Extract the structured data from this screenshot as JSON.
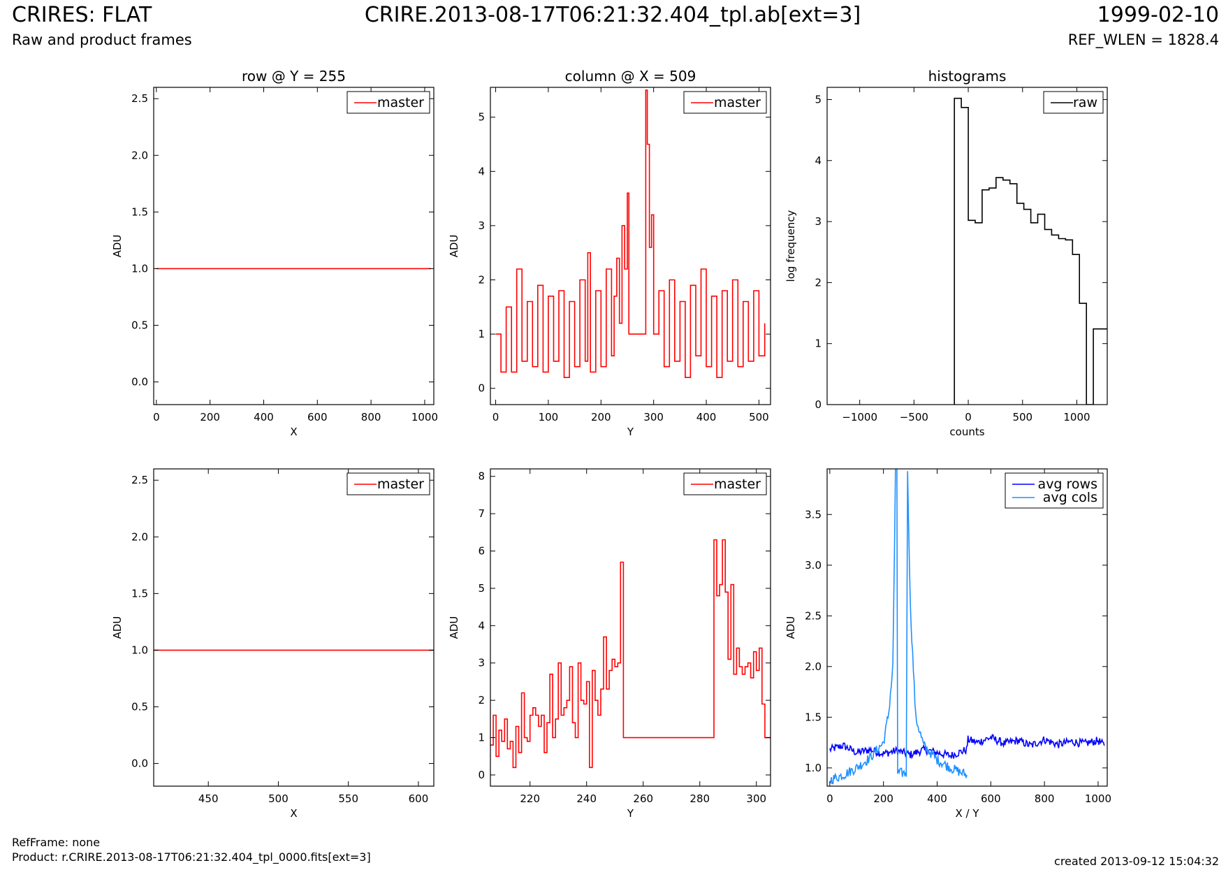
{
  "header": {
    "title_left": "CRIRES: FLAT",
    "subtitle_left": "Raw and product frames",
    "title_center": "CRIRE.2013-08-17T06:21:32.404_tpl.ab[ext=3]",
    "title_right": "1999-02-10",
    "subtitle_right": "REF_WLEN = 1828.4"
  },
  "footer": {
    "ref_frame": "RefFrame: none",
    "product": "Product: r.CRIRE.2013-08-17T06:21:32.404_tpl_0000.fits[ext=3]",
    "created": "created 2013-09-12 15:04:32"
  },
  "colors": {
    "red": "#ff0000",
    "black": "#000000",
    "blue": "#0000ff",
    "lightblue": "#1e90ff"
  },
  "chart_data": [
    {
      "type": "line",
      "title": "row @ Y = 255",
      "xlabel": "X",
      "ylabel": "ADU",
      "xlim": [
        -10,
        1034
      ],
      "ylim": [
        -0.2,
        2.6
      ],
      "xticks": [
        0,
        200,
        400,
        600,
        800,
        1000
      ],
      "yticks": [
        0.0,
        0.5,
        1.0,
        1.5,
        2.0,
        2.5
      ],
      "ytick_labels": [
        "0.0",
        "0.5",
        "1.0",
        "1.5",
        "2.0",
        "2.5"
      ],
      "legend": "top-right",
      "series": [
        {
          "name": "master",
          "color": "#ff0000",
          "x": [
            0,
            1023
          ],
          "y": [
            1.0,
            1.0
          ]
        }
      ]
    },
    {
      "type": "line",
      "title": "column @ X = 509",
      "xlabel": "Y",
      "ylabel": "ADU",
      "xlim": [
        -10,
        522
      ],
      "ylim": [
        -0.3,
        5.55
      ],
      "xticks": [
        0,
        100,
        200,
        300,
        400,
        500
      ],
      "yticks": [
        0,
        1,
        2,
        3,
        4,
        5
      ],
      "ytick_labels": [
        "0",
        "1",
        "2",
        "3",
        "4",
        "5"
      ],
      "legend": "top-right",
      "series": [
        {
          "name": "master",
          "color": "#ff0000",
          "steps": true,
          "x": [
            0,
            10,
            20,
            30,
            40,
            50,
            60,
            70,
            80,
            90,
            100,
            110,
            120,
            130,
            140,
            150,
            160,
            170,
            175,
            180,
            190,
            200,
            210,
            220,
            225,
            230,
            235,
            240,
            245,
            250,
            253,
            285,
            288,
            292,
            296,
            300,
            310,
            320,
            330,
            340,
            350,
            360,
            370,
            380,
            390,
            400,
            410,
            420,
            430,
            440,
            450,
            460,
            470,
            480,
            490,
            500,
            511
          ],
          "y": [
            1.0,
            0.3,
            1.5,
            0.3,
            2.2,
            0.5,
            1.6,
            0.4,
            1.9,
            0.3,
            1.7,
            0.5,
            1.8,
            0.2,
            1.6,
            0.4,
            2.0,
            0.5,
            2.5,
            0.3,
            1.8,
            0.4,
            2.2,
            0.6,
            1.7,
            2.4,
            1.2,
            3.0,
            2.2,
            3.6,
            1.0,
            5.5,
            4.5,
            2.6,
            3.2,
            1.0,
            1.8,
            0.4,
            2.0,
            0.5,
            1.6,
            0.2,
            1.9,
            0.6,
            2.2,
            0.4,
            1.7,
            0.2,
            1.8,
            0.5,
            2.0,
            0.4,
            1.6,
            0.5,
            1.8,
            0.6,
            1.2
          ]
        }
      ]
    },
    {
      "type": "line",
      "title": "histograms",
      "xlabel": "counts",
      "ylabel": "log frequency",
      "xlim": [
        -1300,
        1280
      ],
      "ylim": [
        0,
        5.2
      ],
      "xticks": [
        -1000,
        -500,
        0,
        500,
        1000
      ],
      "xtick_labels": [
        "−1000",
        "−500",
        "0",
        "500",
        "1000"
      ],
      "yticks": [
        0,
        1,
        2,
        3,
        4,
        5
      ],
      "ytick_labels": [
        "0",
        "1",
        "2",
        "3",
        "4",
        "5"
      ],
      "legend": "top-right",
      "series": [
        {
          "name": "raw",
          "color": "#000000",
          "steps": true,
          "x": [
            -128,
            -64,
            0,
            64,
            128,
            192,
            256,
            320,
            384,
            448,
            512,
            576,
            640,
            704,
            768,
            832,
            896,
            960,
            1024,
            1088,
            1152,
            1216
          ],
          "y": [
            5.02,
            4.87,
            3.02,
            2.98,
            3.52,
            3.55,
            3.72,
            3.68,
            3.62,
            3.3,
            3.2,
            2.98,
            3.12,
            2.87,
            2.78,
            2.72,
            2.7,
            2.46,
            1.66,
            0,
            1.24,
            1.24
          ],
          "x_end": 1280
        }
      ]
    },
    {
      "type": "line",
      "title": "",
      "xlabel": "X",
      "ylabel": "ADU",
      "xlim": [
        411,
        611
      ],
      "ylim": [
        -0.2,
        2.6
      ],
      "xticks": [
        450,
        500,
        550,
        600
      ],
      "yticks": [
        0.0,
        0.5,
        1.0,
        1.5,
        2.0,
        2.5
      ],
      "ytick_labels": [
        "0.0",
        "0.5",
        "1.0",
        "1.5",
        "2.0",
        "2.5"
      ],
      "legend": "top-right",
      "series": [
        {
          "name": "master",
          "color": "#ff0000",
          "x": [
            411,
            611
          ],
          "y": [
            1.0,
            1.0
          ]
        }
      ]
    },
    {
      "type": "line",
      "title": "",
      "xlabel": "Y",
      "ylabel": "ADU",
      "xlim": [
        206,
        305
      ],
      "ylim": [
        -0.3,
        8.2
      ],
      "xticks": [
        220,
        240,
        260,
        280,
        300
      ],
      "yticks": [
        0,
        1,
        2,
        3,
        4,
        5,
        6,
        7,
        8
      ],
      "ytick_labels": [
        "0",
        "1",
        "2",
        "3",
        "4",
        "5",
        "6",
        "7",
        "8"
      ],
      "legend": "top-right",
      "series": [
        {
          "name": "master",
          "color": "#ff0000",
          "steps": true,
          "x": [
            206,
            207,
            208,
            209,
            210,
            211,
            212,
            213,
            214,
            215,
            216,
            217,
            218,
            219,
            220,
            221,
            222,
            223,
            224,
            225,
            226,
            227,
            228,
            229,
            230,
            231,
            232,
            233,
            234,
            235,
            236,
            237,
            238,
            239,
            240,
            241,
            242,
            243,
            244,
            245,
            246,
            247,
            248,
            249,
            250,
            251,
            252,
            253,
            285,
            286,
            287,
            288,
            289,
            290,
            291,
            292,
            293,
            294,
            295,
            296,
            297,
            298,
            299,
            300,
            301,
            302,
            303,
            304
          ],
          "y": [
            0.8,
            1.6,
            0.5,
            1.2,
            0.9,
            1.5,
            0.7,
            0.9,
            0.2,
            1.3,
            0.6,
            2.2,
            1.0,
            0.9,
            1.6,
            1.8,
            1.6,
            1.3,
            1.6,
            0.6,
            1.4,
            2.7,
            1.0,
            1.5,
            3.0,
            1.6,
            1.8,
            2.0,
            2.9,
            1.4,
            1.0,
            3.0,
            2.0,
            1.9,
            2.5,
            0.2,
            2.8,
            2.0,
            1.6,
            2.3,
            3.7,
            2.3,
            2.8,
            3.1,
            2.9,
            3.0,
            5.7,
            1.0,
            6.3,
            4.8,
            5.1,
            6.3,
            4.9,
            3.1,
            5.1,
            2.7,
            3.4,
            2.9,
            2.7,
            2.9,
            3.0,
            2.6,
            3.3,
            2.8,
            3.4,
            1.9,
            1.0,
            1.0
          ],
          "x_end": 305
        }
      ]
    },
    {
      "type": "line",
      "title": "",
      "xlabel": "X / Y",
      "ylabel": "ADU",
      "xlim": [
        -10,
        1034
      ],
      "ylim": [
        0.82,
        3.95
      ],
      "xticks": [
        0,
        200,
        400,
        600,
        800,
        1000
      ],
      "yticks": [
        1.0,
        1.5,
        2.0,
        2.5,
        3.0,
        3.5
      ],
      "ytick_labels": [
        "1.0",
        "1.5",
        "2.0",
        "2.5",
        "3.0",
        "3.5"
      ],
      "legend": "top-right",
      "series": [
        {
          "name": "avg rows",
          "color": "#0000ff",
          "x": [
            0,
            50,
            100,
            150,
            200,
            250,
            300,
            350,
            400,
            450,
            500,
            510,
            515,
            550,
            600,
            650,
            700,
            750,
            800,
            850,
            900,
            950,
            1000,
            1023
          ],
          "y": [
            1.18,
            1.22,
            1.15,
            1.18,
            1.14,
            1.17,
            1.13,
            1.18,
            1.15,
            1.12,
            1.17,
            1.18,
            1.28,
            1.25,
            1.3,
            1.24,
            1.27,
            1.22,
            1.28,
            1.23,
            1.26,
            1.24,
            1.27,
            1.22
          ],
          "noise": 0.04
        },
        {
          "name": "avg cols",
          "color": "#1e90ff",
          "x": [
            0,
            50,
            100,
            150,
            200,
            220,
            235,
            245,
            250,
            253,
            285,
            290,
            300,
            320,
            350,
            400,
            450,
            511
          ],
          "y": [
            0.88,
            0.93,
            1.0,
            1.1,
            1.25,
            1.55,
            2.0,
            3.95,
            3.95,
            0.95,
            0.95,
            3.95,
            2.6,
            1.5,
            1.22,
            1.08,
            1.0,
            0.93
          ],
          "noise": 0.05
        }
      ]
    }
  ]
}
